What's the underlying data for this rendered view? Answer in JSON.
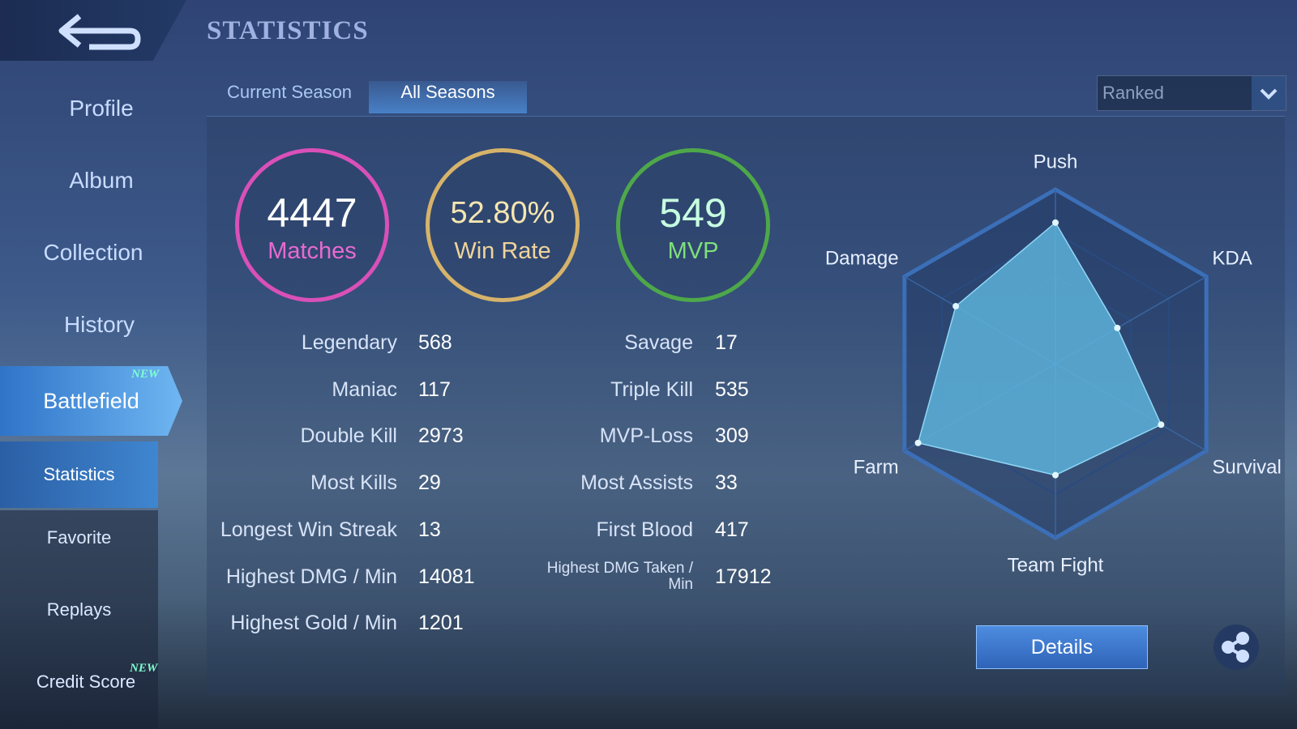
{
  "header": {
    "title": "STATISTICS"
  },
  "sidebar": [
    {
      "label": "Profile"
    },
    {
      "label": "Album"
    },
    {
      "label": "Collection"
    },
    {
      "label": "History"
    },
    {
      "label": "Battlefield",
      "badge": "NEW"
    },
    {
      "label": "Statistics"
    },
    {
      "label": "Favorite"
    },
    {
      "label": "Replays"
    },
    {
      "label": "Credit Score",
      "badge": "NEW"
    }
  ],
  "tabs": [
    "Current Season",
    "All Seasons"
  ],
  "mode": "Ranked",
  "summary": [
    {
      "value": 4447,
      "label": "Matches"
    },
    {
      "value": "52.80%",
      "label": "Win Rate"
    },
    {
      "value": 549,
      "label": "MVP"
    }
  ],
  "stats_left": [
    {
      "label": "Legendary",
      "value": 568
    },
    {
      "label": "Maniac",
      "value": 117
    },
    {
      "label": "Double Kill",
      "value": 2973
    },
    {
      "label": "Most Kills",
      "value": 29
    },
    {
      "label": "Longest Win Streak",
      "value": 13
    },
    {
      "label": "Highest DMG / Min",
      "value": 14081
    },
    {
      "label": "Highest Gold / Min",
      "value": 1201
    }
  ],
  "stats_right": [
    {
      "label": "Savage",
      "value": 17
    },
    {
      "label": "Triple Kill",
      "value": 535
    },
    {
      "label": "MVP-Loss",
      "value": 309
    },
    {
      "label": "Most Assists",
      "value": 33
    },
    {
      "label": "First Blood",
      "value": 417
    },
    {
      "label": "Highest DMG Taken / Min",
      "value": 17912
    }
  ],
  "chart_data": {
    "type": "radar",
    "categories": [
      "Push",
      "KDA",
      "Survival",
      "Team Fight",
      "Farm",
      "Damage"
    ],
    "values": [
      81,
      41,
      70,
      64,
      91,
      66
    ],
    "color": "#5fb8e0",
    "ylim": [
      0,
      100
    ],
    "rticks": [
      25,
      50,
      75,
      100
    ]
  },
  "buttons": {
    "details": "Details"
  }
}
